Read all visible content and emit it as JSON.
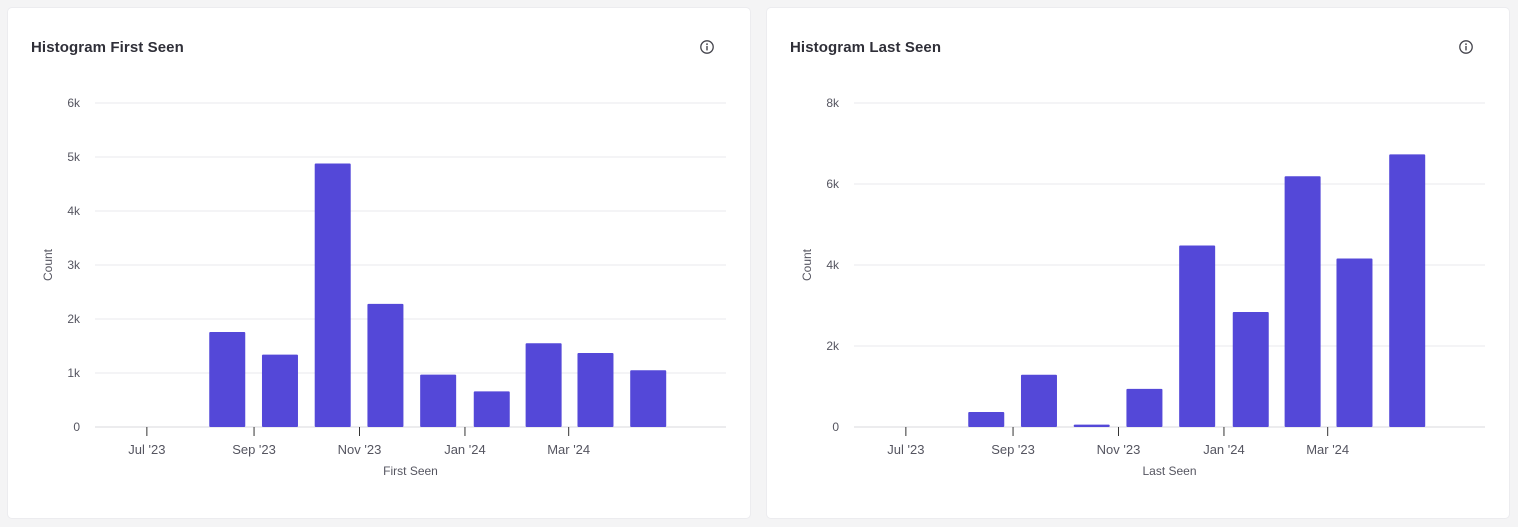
{
  "colors": {
    "bar": "#5448d8",
    "grid": "#e8e8ec",
    "axis_text": "#555560",
    "title": "#2f2f38"
  },
  "icons": {
    "info": "info-icon"
  },
  "cards": [
    {
      "title": "Histogram First Seen"
    },
    {
      "title": "Histogram Last Seen"
    }
  ],
  "chart_data": [
    {
      "type": "bar",
      "title": "Histogram First Seen",
      "xlabel": "First Seen",
      "ylabel": "Count",
      "ylim": [
        0,
        6000
      ],
      "yticks": [
        0,
        1000,
        2000,
        3000,
        4000,
        5000,
        6000
      ],
      "ytick_labels": [
        "0",
        "1k",
        "2k",
        "3k",
        "4k",
        "5k",
        "6k"
      ],
      "xlim": [
        "2023-06-01",
        "2024-05-31"
      ],
      "xticks": [
        "2023-07-01",
        "2023-09-01",
        "2023-11-01",
        "2024-01-01",
        "2024-03-01"
      ],
      "xtick_labels": [
        "Jul '23",
        "Sep '23",
        "Nov '23",
        "Jan '24",
        "Mar '24"
      ],
      "grid": true,
      "bars": [
        {
          "x": "2023-08",
          "value": 1760
        },
        {
          "x": "2023-09",
          "value": 1340
        },
        {
          "x": "2023-10",
          "value": 4880
        },
        {
          "x": "2023-11",
          "value": 2280
        },
        {
          "x": "2023-12",
          "value": 970
        },
        {
          "x": "2024-01",
          "value": 660
        },
        {
          "x": "2024-02",
          "value": 1550
        },
        {
          "x": "2024-03",
          "value": 1370
        },
        {
          "x": "2024-04",
          "value": 1050
        }
      ]
    },
    {
      "type": "bar",
      "title": "Histogram Last Seen",
      "xlabel": "Last Seen",
      "ylabel": "Count",
      "ylim": [
        0,
        8000
      ],
      "yticks": [
        0,
        2000,
        4000,
        6000,
        8000
      ],
      "ytick_labels": [
        "0",
        "2k",
        "4k",
        "6k",
        "8k"
      ],
      "xlim": [
        "2023-06-01",
        "2024-05-31"
      ],
      "xticks": [
        "2023-07-01",
        "2023-09-01",
        "2023-11-01",
        "2024-01-01",
        "2024-03-01"
      ],
      "xtick_labels": [
        "Jul '23",
        "Sep '23",
        "Nov '23",
        "Jan '24",
        "Mar '24"
      ],
      "grid": true,
      "bars": [
        {
          "x": "2023-08",
          "value": 370
        },
        {
          "x": "2023-09",
          "value": 1290
        },
        {
          "x": "2023-10",
          "value": 60
        },
        {
          "x": "2023-11",
          "value": 940
        },
        {
          "x": "2023-12",
          "value": 4480
        },
        {
          "x": "2024-01",
          "value": 2840
        },
        {
          "x": "2024-02",
          "value": 6190
        },
        {
          "x": "2024-03",
          "value": 4160
        },
        {
          "x": "2024-04",
          "value": 6730
        }
      ]
    }
  ]
}
